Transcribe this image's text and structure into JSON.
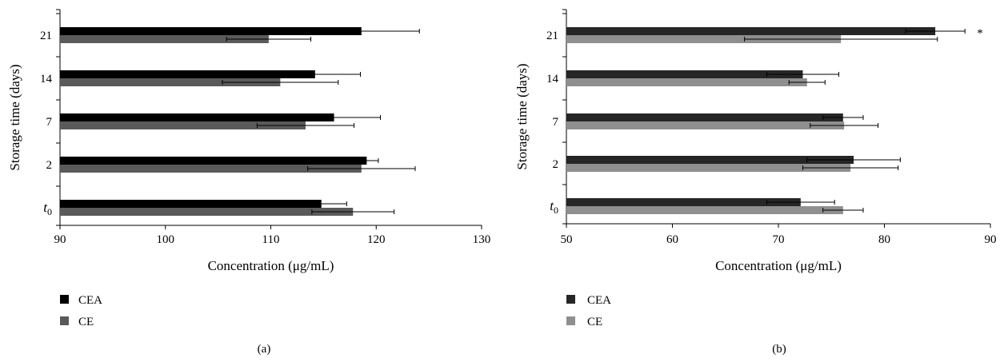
{
  "chart_data": [
    {
      "type": "bar",
      "orientation": "horizontal",
      "panel_label": "(a)",
      "categories": [
        "t0",
        "2",
        "7",
        "14",
        "21"
      ],
      "category_labels": [
        {
          "base": "t",
          "sub": "0"
        },
        {
          "base": "2",
          "sub": ""
        },
        {
          "base": "7",
          "sub": ""
        },
        {
          "base": "14",
          "sub": ""
        },
        {
          "base": "21",
          "sub": ""
        }
      ],
      "series": [
        {
          "name": "CEA",
          "color": "#000000",
          "values": [
            114.8,
            119.1,
            116.0,
            114.2,
            118.6
          ],
          "errors": [
            2.4,
            1.1,
            4.4,
            4.3,
            5.5
          ]
        },
        {
          "name": "CE",
          "color": "#5a5a5a",
          "values": [
            117.8,
            118.6,
            113.3,
            110.9,
            109.8
          ],
          "errors": [
            3.9,
            5.1,
            4.6,
            5.5,
            4.0
          ]
        }
      ],
      "xlim": [
        90,
        130
      ],
      "xticks": [
        "90",
        "100",
        "110",
        "120",
        "130"
      ],
      "xlabel": "Concentration (μg/mL)",
      "ylabel": "Storage time (days)",
      "annotations": [],
      "legend_position": "bottom-left"
    },
    {
      "type": "bar",
      "orientation": "horizontal",
      "panel_label": "(b)",
      "categories": [
        "t0",
        "2",
        "7",
        "14",
        "21"
      ],
      "category_labels": [
        {
          "base": "t",
          "sub": "0"
        },
        {
          "base": "2",
          "sub": ""
        },
        {
          "base": "7",
          "sub": ""
        },
        {
          "base": "14",
          "sub": ""
        },
        {
          "base": "21",
          "sub": ""
        }
      ],
      "series": [
        {
          "name": "CEA",
          "color": "#262626",
          "values": [
            72.1,
            77.1,
            76.1,
            72.3,
            84.8
          ],
          "errors": [
            3.2,
            4.4,
            1.9,
            3.4,
            2.8
          ]
        },
        {
          "name": "CE",
          "color": "#8f8f8f",
          "values": [
            76.1,
            76.8,
            76.2,
            72.7,
            75.9
          ],
          "errors": [
            1.9,
            4.5,
            3.2,
            1.7,
            9.1
          ]
        }
      ],
      "xlim": [
        50,
        90
      ],
      "xticks": [
        "50",
        "60",
        "70",
        "80",
        "90"
      ],
      "xlabel": "Concentration (μg/mL)",
      "ylabel": "Storage time (days)",
      "annotations": [
        {
          "category": "21",
          "text": "*"
        }
      ],
      "legend_position": "bottom-left"
    }
  ]
}
